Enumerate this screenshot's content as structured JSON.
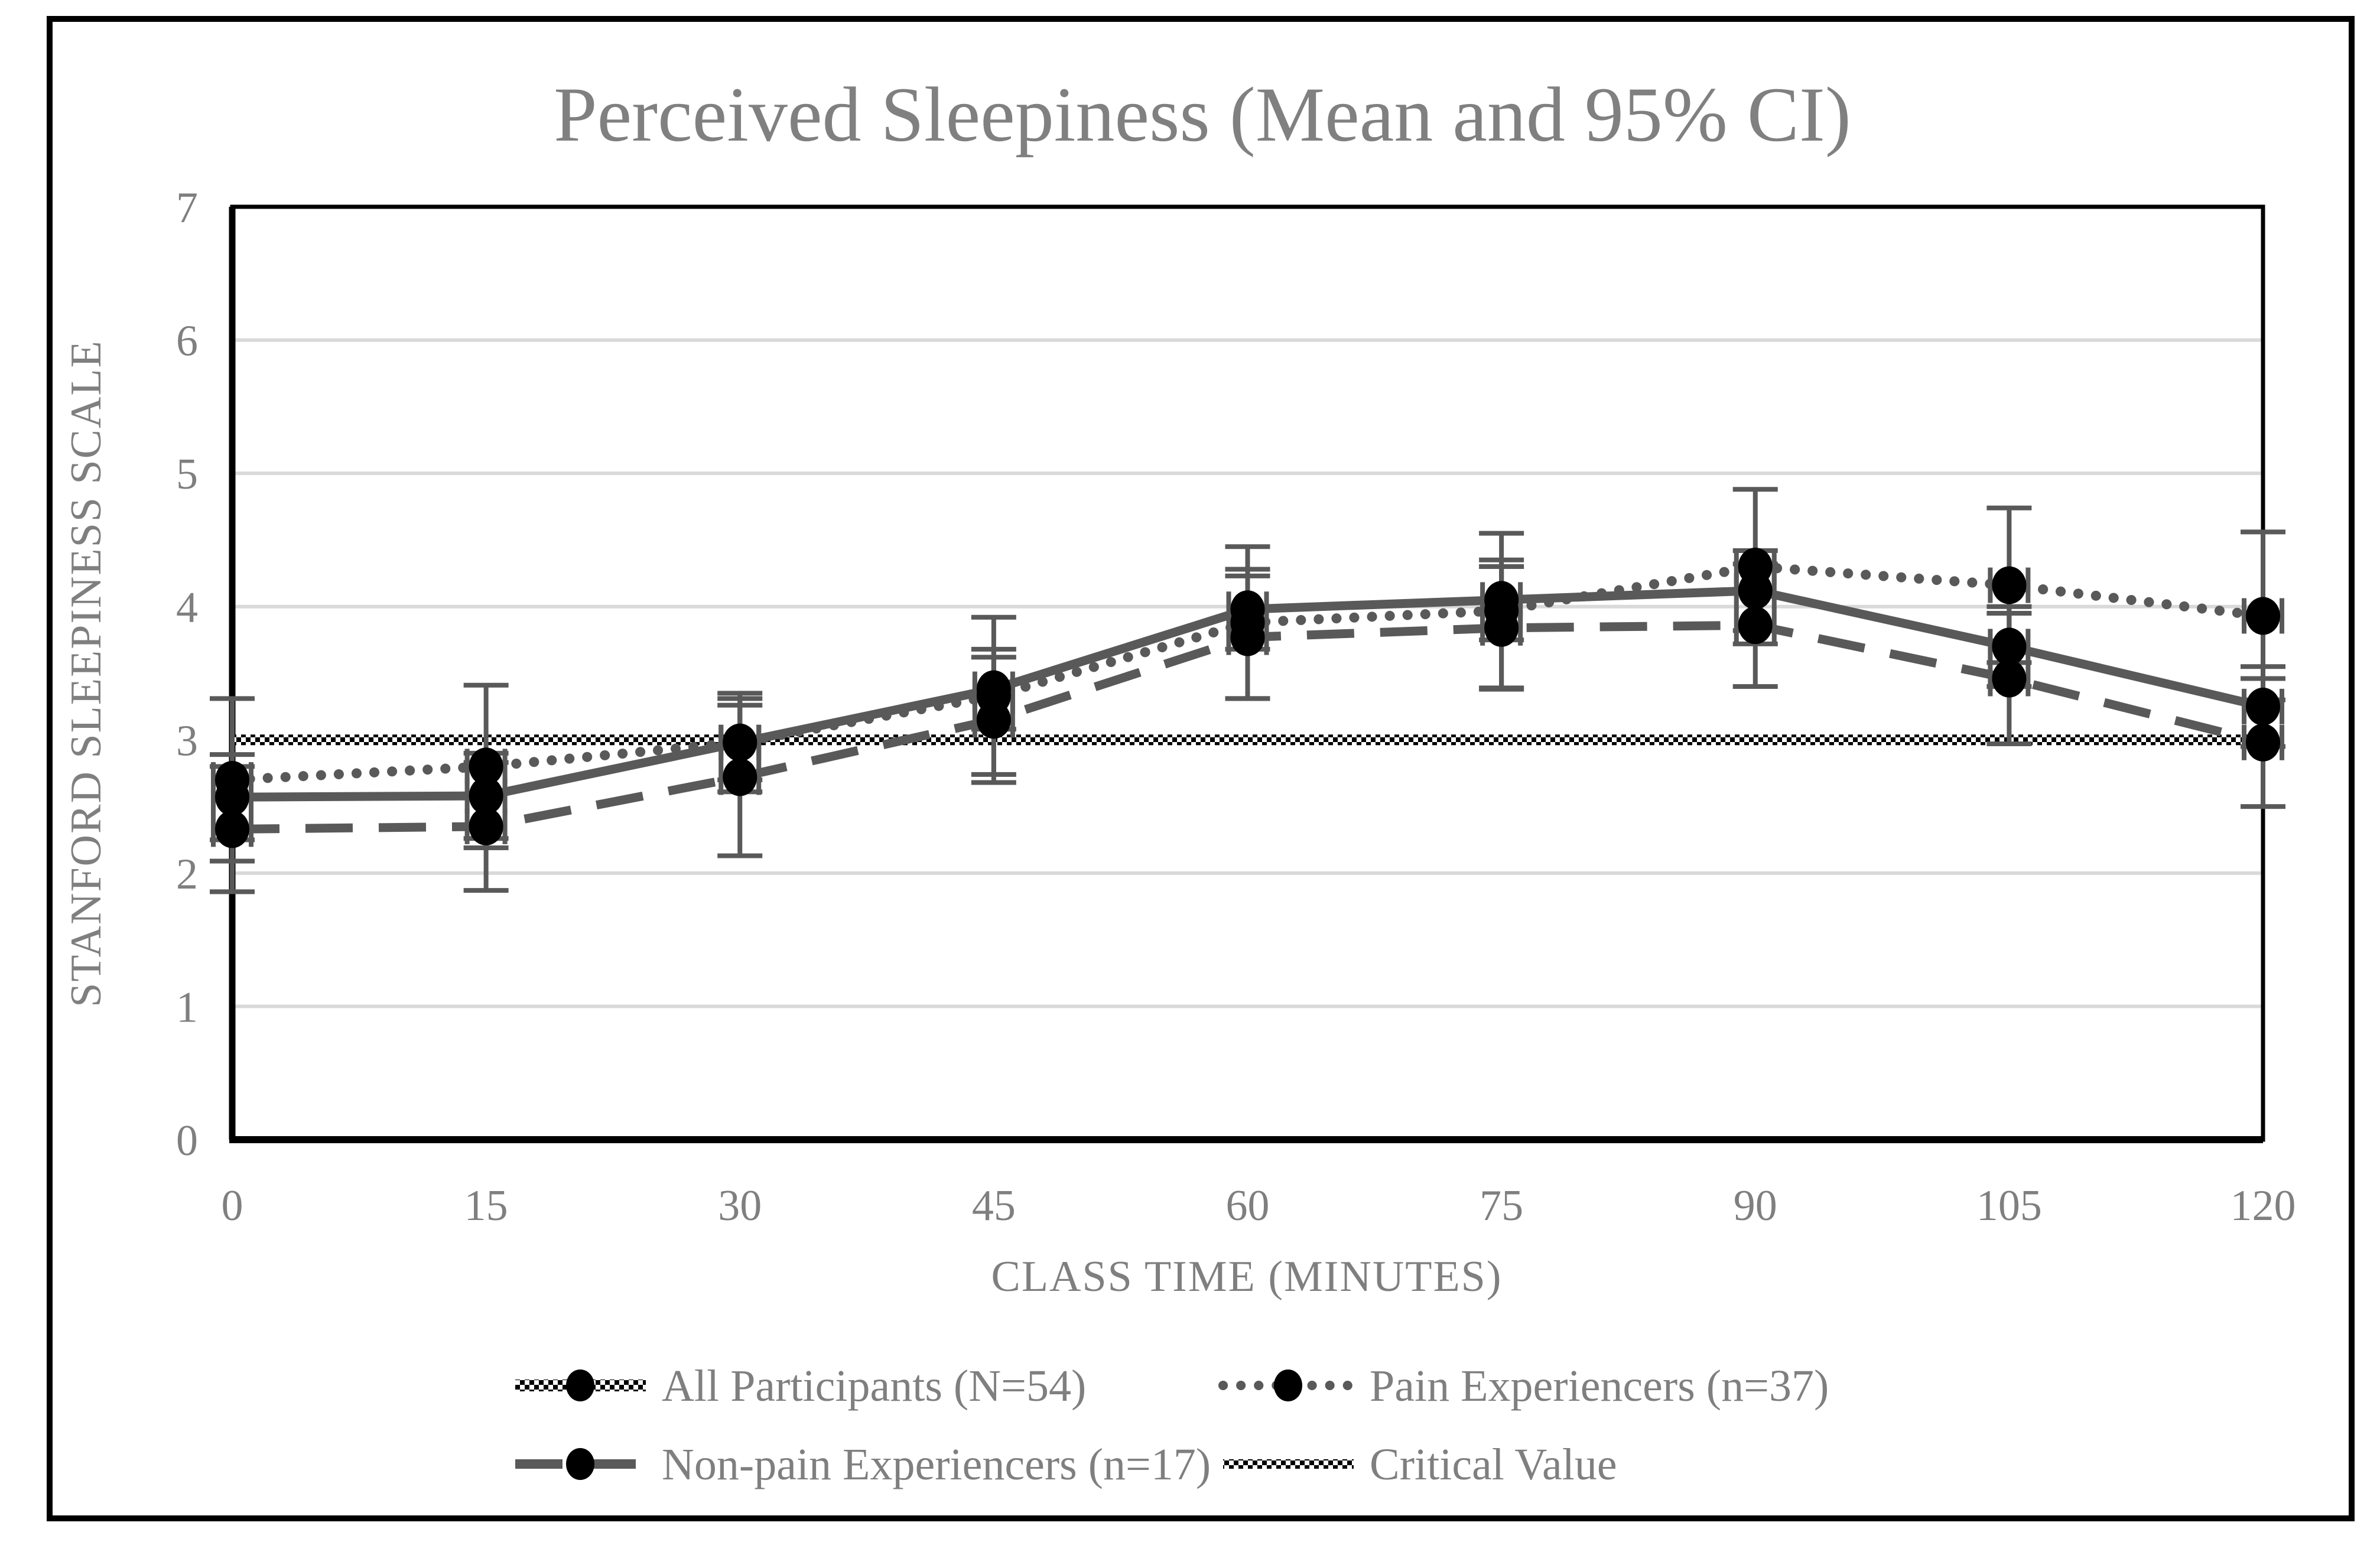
{
  "title": "Perceived Sleepiness (Mean and 95% CI)",
  "chart_data": {
    "type": "line",
    "title": "Perceived Sleepiness (Mean and 95% CI)",
    "xlabel": "CLASS TIME (MINUTES)",
    "ylabel": "STANFORD SLEEPINESS SCALE",
    "x": [
      0,
      15,
      30,
      45,
      60,
      75,
      90,
      105,
      120
    ],
    "xlim": [
      0,
      120
    ],
    "ylim": [
      0,
      7
    ],
    "yticks": [
      0,
      1,
      2,
      3,
      4,
      5,
      6,
      7
    ],
    "grid": true,
    "legend_position": "bottom",
    "error_bars": "95% CI",
    "series": [
      {
        "name": "All Participants (N=54)",
        "style": "solid",
        "values": [
          2.57,
          2.58,
          2.98,
          3.38,
          3.98,
          4.05,
          4.12,
          3.7,
          3.25
        ],
        "ci_low": [
          2.25,
          2.26,
          2.7,
          3.08,
          3.68,
          3.75,
          3.82,
          3.4,
          2.95
        ],
        "ci_high": [
          2.89,
          2.9,
          3.26,
          3.68,
          4.28,
          4.35,
          4.42,
          4.0,
          3.55
        ]
      },
      {
        "name": "Pain Experiencers (n=37)",
        "style": "dotted",
        "values": [
          2.7,
          2.8,
          2.98,
          3.33,
          3.88,
          3.97,
          4.3,
          4.16,
          3.93
        ],
        "ci_low": [
          2.09,
          2.19,
          2.61,
          2.74,
          3.31,
          3.39,
          3.72,
          3.58,
          3.3
        ],
        "ci_high": [
          3.31,
          3.41,
          3.35,
          3.92,
          4.45,
          4.55,
          4.88,
          4.74,
          4.56
        ]
      },
      {
        "name": "Non-pain Experiencers (n=17)",
        "style": "dashed",
        "values": [
          2.33,
          2.35,
          2.72,
          3.15,
          3.77,
          3.84,
          3.86,
          3.46,
          2.98
        ],
        "ci_low": [
          1.86,
          1.87,
          2.13,
          2.68,
          3.31,
          3.38,
          3.4,
          2.97,
          2.5
        ],
        "ci_high": [
          2.8,
          2.83,
          3.31,
          3.62,
          4.23,
          4.3,
          4.32,
          3.95,
          3.46
        ]
      },
      {
        "name": "Critical Value",
        "style": "hatched",
        "value": 3.0
      }
    ],
    "colors": {
      "line": "#595959",
      "marker": "#000000",
      "grid": "#d9d9d9",
      "text": "#7f7f7f",
      "title": "#808080",
      "axis": "#000000",
      "background": "#ffffff"
    }
  }
}
